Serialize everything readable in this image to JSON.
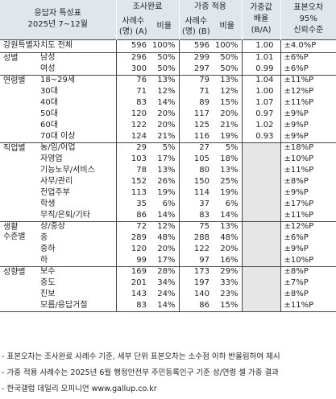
{
  "header": {
    "label_line1": "응답자 특성표",
    "label_line2": "2025년 7~12월",
    "group_unweighted": "조사완료",
    "group_weighted": "가중 적용",
    "group_weight_ratio_l1": "가중값",
    "group_weight_ratio_l2": "배율",
    "group_weight_ratio_l3": "(B/A)",
    "moe_l1": "표본오차",
    "moe_l2": "95%",
    "moe_l3": "신뢰수준",
    "cases_a_l1": "사례수",
    "cases_a_l2": "(명) (A)",
    "pct_a": "비율",
    "cases_b_l1": "사례수",
    "cases_b_l2": "(명) (B)",
    "pct_b": "비율"
  },
  "total": {
    "label": "강원특별자치도 전체",
    "cases_a": "596",
    "pct_a": "100%",
    "cases_b": "596",
    "pct_b": "100%",
    "ratio": "1.00",
    "moe": "±4.0%P"
  },
  "groups": [
    {
      "name": "성별",
      "rows": [
        {
          "label": "남성",
          "cases_a": "296",
          "pct_a": "50%",
          "cases_b": "299",
          "pct_b": "50%",
          "ratio": "1.01",
          "moe": "±6%P"
        },
        {
          "label": "여성",
          "cases_a": "300",
          "pct_a": "50%",
          "cases_b": "297",
          "pct_b": "50%",
          "ratio": "0.99",
          "moe": "±6%P"
        }
      ]
    },
    {
      "name": "연령별",
      "rows": [
        {
          "label": "18~29세",
          "cases_a": "76",
          "pct_a": "13%",
          "cases_b": "79",
          "pct_b": "13%",
          "ratio": "1.04",
          "moe": "±11%P"
        },
        {
          "label": "30대",
          "cases_a": "71",
          "pct_a": "12%",
          "cases_b": "71",
          "pct_b": "12%",
          "ratio": "1.00",
          "moe": "±12%P"
        },
        {
          "label": "40대",
          "cases_a": "83",
          "pct_a": "14%",
          "cases_b": "89",
          "pct_b": "15%",
          "ratio": "1.07",
          "moe": "±11%P"
        },
        {
          "label": "50대",
          "cases_a": "120",
          "pct_a": "20%",
          "cases_b": "117",
          "pct_b": "20%",
          "ratio": "0.97",
          "moe": "±9%P"
        },
        {
          "label": "60대",
          "cases_a": "122",
          "pct_a": "20%",
          "cases_b": "125",
          "pct_b": "21%",
          "ratio": "1.02",
          "moe": "±9%P"
        },
        {
          "label": "70대 이상",
          "cases_a": "124",
          "pct_a": "21%",
          "cases_b": "116",
          "pct_b": "19%",
          "ratio": "0.93",
          "moe": "±9%P"
        }
      ]
    },
    {
      "name": "직업별",
      "rows": [
        {
          "label": "농/임/어업",
          "cases_a": "29",
          "pct_a": "5%",
          "cases_b": "27",
          "pct_b": "5%",
          "ratio": "",
          "moe": "±18%P"
        },
        {
          "label": "자영업",
          "cases_a": "103",
          "pct_a": "17%",
          "cases_b": "105",
          "pct_b": "18%",
          "ratio": "",
          "moe": "±10%P"
        },
        {
          "label": "기능노무/서비스",
          "cases_a": "78",
          "pct_a": "13%",
          "cases_b": "80",
          "pct_b": "13%",
          "ratio": "",
          "moe": "±11%P"
        },
        {
          "label": "사무/관리",
          "cases_a": "152",
          "pct_a": "26%",
          "cases_b": "150",
          "pct_b": "25%",
          "ratio": "",
          "moe": "±8%P"
        },
        {
          "label": "전업주부",
          "cases_a": "113",
          "pct_a": "19%",
          "cases_b": "114",
          "pct_b": "19%",
          "ratio": "",
          "moe": "±9%P"
        },
        {
          "label": "학생",
          "cases_a": "35",
          "pct_a": "6%",
          "cases_b": "37",
          "pct_b": "6%",
          "ratio": "",
          "moe": "±17%P"
        },
        {
          "label": "무직/은퇴/기타",
          "cases_a": "86",
          "pct_a": "14%",
          "cases_b": "83",
          "pct_b": "14%",
          "ratio": "",
          "moe": "±11%P"
        }
      ]
    },
    {
      "name": "생활",
      "name2": "수준별",
      "rows": [
        {
          "label": "상/중상",
          "cases_a": "72",
          "pct_a": "12%",
          "cases_b": "75",
          "pct_b": "13%",
          "ratio": "",
          "moe": "±12%P"
        },
        {
          "label": "중",
          "cases_a": "289",
          "pct_a": "48%",
          "cases_b": "288",
          "pct_b": "48%",
          "ratio": "",
          "moe": "±6%P"
        },
        {
          "label": "중하",
          "cases_a": "120",
          "pct_a": "20%",
          "cases_b": "122",
          "pct_b": "20%",
          "ratio": "",
          "moe": "±9%P"
        },
        {
          "label": "하",
          "cases_a": "99",
          "pct_a": "17%",
          "cases_b": "97",
          "pct_b": "16%",
          "ratio": "",
          "moe": "±10%P"
        }
      ]
    },
    {
      "name": "성향별",
      "rows": [
        {
          "label": "보수",
          "cases_a": "169",
          "pct_a": "28%",
          "cases_b": "173",
          "pct_b": "29%",
          "ratio": "",
          "moe": "±8%P"
        },
        {
          "label": "중도",
          "cases_a": "201",
          "pct_a": "34%",
          "cases_b": "197",
          "pct_b": "33%",
          "ratio": "",
          "moe": "±7%P"
        },
        {
          "label": "진보",
          "cases_a": "143",
          "pct_a": "24%",
          "cases_b": "140",
          "pct_b": "23%",
          "ratio": "",
          "moe": "±8%P"
        },
        {
          "label": "모름/응답거절",
          "cases_a": "83",
          "pct_a": "14%",
          "cases_b": "86",
          "pct_b": "15%",
          "ratio": "",
          "moe": "±11%P"
        }
      ]
    }
  ],
  "notes": [
    "- 표본오차는 조사완료 사례수 기준, 세부 단위 표본오차는 소수점 이하 반올림하여 제시",
    "- 가중 적용 사례수는 2025년 6월 행정안전부 주민등록인구 기준 성/연령 셀 가중 결과",
    "- 한국갤럽 데일리 오피니언 www.gallup.co.kr"
  ],
  "colors": {
    "header_bg": "#dfe7ec",
    "ratio_gray": "#e6e6e6",
    "rule": "#444444"
  }
}
